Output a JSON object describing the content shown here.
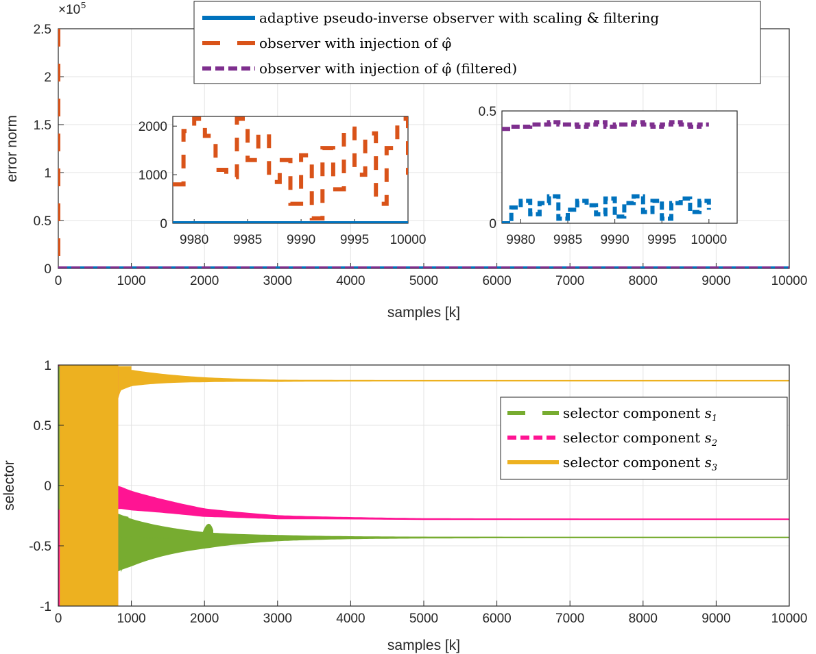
{
  "chart_data": [
    {
      "type": "line",
      "xlabel": "samples [k]",
      "ylabel": "error norm",
      "xlim": [
        0,
        10000
      ],
      "ylim": [
        0,
        250000
      ],
      "xticks": [
        "0",
        "1000",
        "2000",
        "3000",
        "4000",
        "5000",
        "6000",
        "7000",
        "8000",
        "9000",
        "10000"
      ],
      "yticks": [
        "0",
        "0.5",
        "1",
        "1.5",
        "2",
        "2.5"
      ],
      "y_exponent_label": "×10",
      "y_exponent_power": "5",
      "grid": true,
      "legend_position": "top-right",
      "series": [
        {
          "name": "adaptive pseudo-inverse observer with scaling & filtering",
          "color": "#0072BD",
          "style": "solid",
          "x": [
            0,
            10000
          ],
          "y": [
            0,
            0
          ]
        },
        {
          "name": "observer with injection of φ̂",
          "color": "#D95319",
          "style": "dashed",
          "x": [
            0,
            0,
            30,
            10000
          ],
          "y": [
            250000,
            0,
            0,
            0
          ]
        },
        {
          "name": "observer with injection of φ̂ (filtered)",
          "color": "#7E2F8E",
          "style": "dashed",
          "x": [
            0,
            10000
          ],
          "y": [
            0,
            0
          ]
        }
      ]
    },
    {
      "type": "line",
      "inset": "left",
      "xlim": [
        9978,
        10000
      ],
      "ylim": [
        0,
        2200
      ],
      "xticks": [
        "9980",
        "9985",
        "9990",
        "9995",
        "10000"
      ],
      "yticks": [
        "0",
        "1000",
        "2000"
      ],
      "series": [
        {
          "name": "",
          "color": "#0072BD",
          "x": [
            9978,
            10000
          ],
          "y": [
            0,
            0
          ]
        },
        {
          "name": "",
          "color": "#D95319",
          "x": [
            9978,
            9979,
            9980,
            9981,
            9982,
            9983,
            9984,
            9985,
            9986,
            9987,
            9988,
            9989,
            9990,
            9991,
            9992,
            9993,
            9994,
            9995,
            9996,
            9997,
            9998,
            9999,
            10000
          ],
          "y": [
            800,
            1900,
            2150,
            1800,
            1100,
            950,
            2150,
            1300,
            1850,
            850,
            1300,
            400,
            1400,
            100,
            1550,
            700,
            1950,
            1000,
            1850,
            400,
            1550,
            2150,
            1000
          ]
        }
      ]
    },
    {
      "type": "line",
      "inset": "right",
      "xlim": [
        9978,
        10003
      ],
      "ylim": [
        0,
        0.5
      ],
      "xticks": [
        "9980",
        "9985",
        "9990",
        "9995",
        "10000"
      ],
      "yticks": [
        "0",
        "0.5"
      ],
      "series": [
        {
          "name": "",
          "color": "#7E2F8E",
          "x": [
            9978,
            9979,
            9980,
            9981,
            9982,
            9983,
            9984,
            9985,
            9986,
            9987,
            9988,
            9989,
            9990,
            9991,
            9992,
            9993,
            9994,
            9995,
            9996,
            9997,
            9998,
            9999,
            10000
          ],
          "y": [
            0.42,
            0.43,
            0.43,
            0.44,
            0.44,
            0.45,
            0.44,
            0.44,
            0.43,
            0.44,
            0.45,
            0.43,
            0.44,
            0.44,
            0.45,
            0.44,
            0.43,
            0.44,
            0.45,
            0.44,
            0.43,
            0.44,
            0.44
          ]
        },
        {
          "name": "",
          "color": "#0072BD",
          "x": [
            9978,
            9979,
            9980,
            9981,
            9982,
            9983,
            9984,
            9985,
            9986,
            9987,
            9988,
            9989,
            9990,
            9991,
            9992,
            9993,
            9994,
            9995,
            9996,
            9997,
            9998,
            9999,
            10000
          ],
          "y": [
            0.0,
            0.07,
            0.1,
            0.04,
            0.09,
            0.12,
            0.02,
            0.06,
            0.1,
            0.08,
            0.04,
            0.11,
            0.03,
            0.09,
            0.12,
            0.05,
            0.1,
            0.02,
            0.09,
            0.11,
            0.05,
            0.1,
            0.06
          ]
        }
      ]
    },
    {
      "type": "line",
      "xlabel": "samples [k]",
      "ylabel": "selector",
      "xlim": [
        0,
        10000
      ],
      "ylim": [
        -1,
        1
      ],
      "xticks": [
        "0",
        "1000",
        "2000",
        "3000",
        "4000",
        "5000",
        "6000",
        "7000",
        "8000",
        "9000",
        "10000"
      ],
      "yticks": [
        "-1",
        "-0.5",
        "0",
        "0.5",
        "1"
      ],
      "grid": true,
      "legend_position": "right",
      "series": [
        {
          "name": "selector component",
          "subscript": "1",
          "color": "#77AC30",
          "style": "dashed",
          "x": [
            850,
            1000,
            2000,
            3000,
            5000,
            10000
          ],
          "y": [
            -0.42,
            -0.43,
            -0.44,
            -0.43,
            -0.43,
            -0.43
          ]
        },
        {
          "name": "selector component",
          "subscript": "2",
          "color": "#FF1493",
          "style": "dashed",
          "x": [
            850,
            1000,
            2000,
            3000,
            5000,
            10000
          ],
          "y": [
            -0.14,
            -0.16,
            -0.24,
            -0.27,
            -0.28,
            -0.28
          ]
        },
        {
          "name": "selector component",
          "subscript": "3",
          "color": "#EDB120",
          "style": "solid",
          "x": [
            850,
            1000,
            2000,
            3000,
            5000,
            10000
          ],
          "y": [
            0.88,
            0.9,
            0.88,
            0.87,
            0.87,
            0.87
          ]
        }
      ]
    }
  ]
}
